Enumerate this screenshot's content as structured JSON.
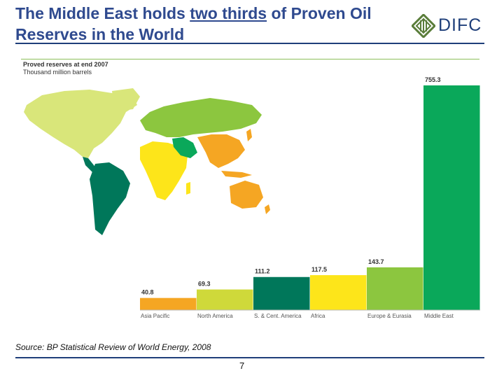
{
  "header": {
    "title_part1": "The Middle East holds ",
    "title_emphasis": "two thirds",
    "title_part2": " of Proven Oil Reserves in the World",
    "logo_text": "DIFC"
  },
  "chart_data": {
    "type": "bar",
    "title": "Proved reserves at end 2007",
    "subtitle": "Thousand million barrels",
    "categories": [
      "Asia Pacific",
      "North America",
      "S. & Cent. America",
      "Africa",
      "Europe & Eurasia",
      "Middle East"
    ],
    "values": [
      40.8,
      69.3,
      111.2,
      117.5,
      143.7,
      755.3
    ],
    "value_labels": [
      "40.8",
      "69.3",
      "111.2",
      "117.5",
      "143.7",
      "755.3"
    ],
    "colors": [
      "#f5a623",
      "#cfd93a",
      "#00775a",
      "#fde51a",
      "#8cc63f",
      "#0aa85a"
    ],
    "ylim": [
      0,
      755.3
    ],
    "grid": false,
    "legend": "none"
  },
  "map": {
    "description_colors": {
      "north_america": "#d9e67a",
      "south_america": "#00775a",
      "africa": "#fde51a",
      "europe_eurasia": "#8cc63f",
      "middle_east": "#0aa85a",
      "asia_pacific": "#f5a623"
    }
  },
  "footer": {
    "source": "Source: BP Statistical Review of World Energy, 2008",
    "page_number": "7"
  }
}
